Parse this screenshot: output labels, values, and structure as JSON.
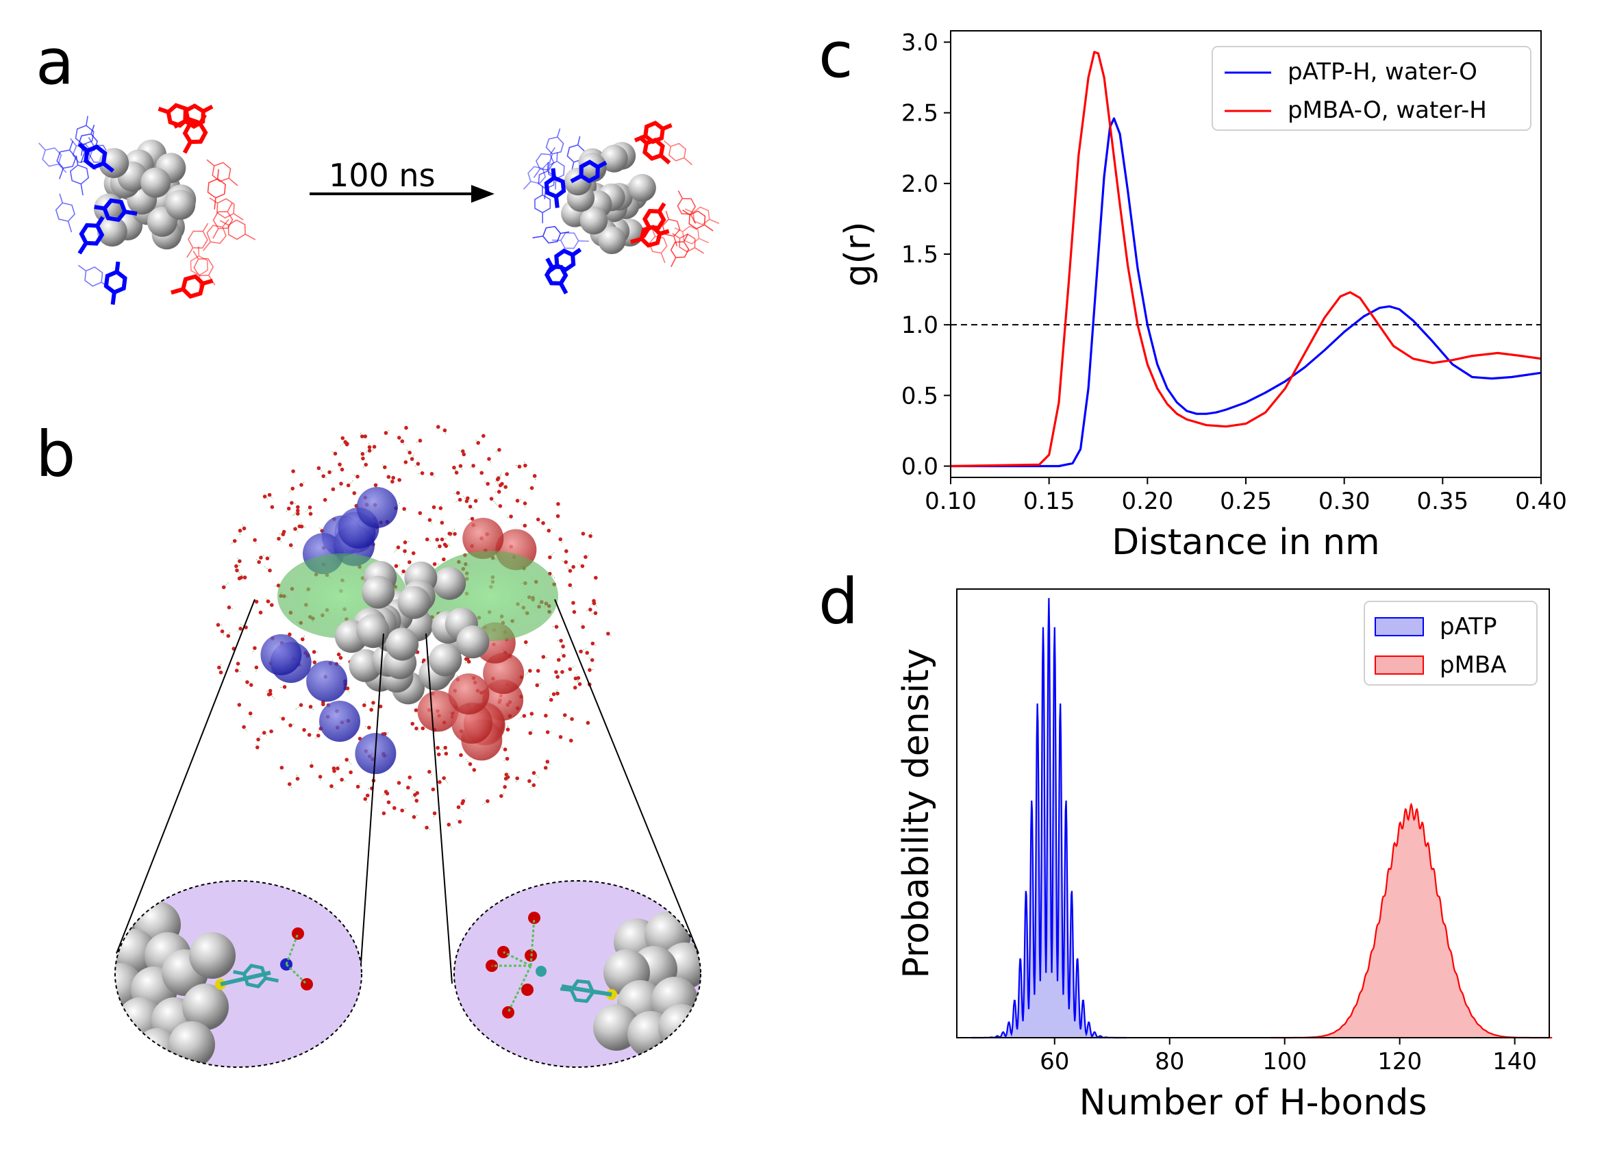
{
  "panels": {
    "a": {
      "letter": "a",
      "arrow_label": "100 ns"
    },
    "b": {
      "letter": "b"
    },
    "c": {
      "letter": "c"
    },
    "d": {
      "letter": "d"
    }
  },
  "colors": {
    "blue": "#0000ff",
    "red": "#ff0000",
    "blue_fill": "#b9b9f5",
    "red_fill": "#f7b3b3",
    "purple": "#dcc8f5",
    "sphere": "#bdbdbd",
    "water_o": "#cc2020",
    "green": "#55c055"
  },
  "chart_data": [
    {
      "panel": "c",
      "type": "line",
      "xlabel": "Distance in nm",
      "ylabel": "g(r)",
      "xlim": [
        0.1,
        0.4
      ],
      "ylim": [
        -0.08,
        3.08
      ],
      "xticks": [
        "0.10",
        "0.15",
        "0.20",
        "0.25",
        "0.30",
        "0.35",
        "0.40"
      ],
      "yticks": [
        "0.0",
        "0.5",
        "1.0",
        "1.5",
        "2.0",
        "2.5",
        "3.0"
      ],
      "legend_position": "top-right",
      "reference_line": {
        "y": 1.0,
        "style": "dashed"
      },
      "series": [
        {
          "name": "pATP-H, water-O",
          "color": "#0000ff",
          "x": [
            0.1,
            0.155,
            0.162,
            0.166,
            0.17,
            0.174,
            0.178,
            0.181,
            0.183,
            0.186,
            0.19,
            0.195,
            0.2,
            0.205,
            0.21,
            0.215,
            0.22,
            0.225,
            0.23,
            0.235,
            0.24,
            0.25,
            0.26,
            0.27,
            0.28,
            0.29,
            0.3,
            0.31,
            0.318,
            0.323,
            0.328,
            0.335,
            0.345,
            0.355,
            0.365,
            0.375,
            0.385,
            0.4
          ],
          "y": [
            0.0,
            0.0,
            0.02,
            0.12,
            0.55,
            1.3,
            2.05,
            2.4,
            2.46,
            2.35,
            1.95,
            1.4,
            1.0,
            0.72,
            0.55,
            0.45,
            0.39,
            0.37,
            0.37,
            0.38,
            0.4,
            0.45,
            0.52,
            0.6,
            0.7,
            0.82,
            0.95,
            1.06,
            1.12,
            1.13,
            1.11,
            1.03,
            0.88,
            0.72,
            0.63,
            0.62,
            0.63,
            0.66
          ]
        },
        {
          "name": "pMBA-O, water-H",
          "color": "#ff0000",
          "x": [
            0.1,
            0.145,
            0.15,
            0.155,
            0.16,
            0.165,
            0.17,
            0.173,
            0.175,
            0.178,
            0.182,
            0.186,
            0.19,
            0.195,
            0.2,
            0.205,
            0.21,
            0.215,
            0.22,
            0.23,
            0.24,
            0.25,
            0.26,
            0.27,
            0.28,
            0.29,
            0.298,
            0.303,
            0.308,
            0.315,
            0.325,
            0.335,
            0.345,
            0.355,
            0.365,
            0.378,
            0.39,
            0.4
          ],
          "y": [
            0.0,
            0.01,
            0.08,
            0.45,
            1.3,
            2.2,
            2.75,
            2.93,
            2.92,
            2.75,
            2.3,
            1.85,
            1.42,
            1.0,
            0.72,
            0.55,
            0.44,
            0.37,
            0.33,
            0.29,
            0.28,
            0.3,
            0.38,
            0.55,
            0.8,
            1.05,
            1.2,
            1.23,
            1.19,
            1.05,
            0.85,
            0.76,
            0.73,
            0.75,
            0.78,
            0.8,
            0.78,
            0.76
          ]
        }
      ]
    },
    {
      "panel": "d",
      "type": "area",
      "xlabel": "Number of H-bonds",
      "ylabel": "Probability density",
      "xlim": [
        43,
        146
      ],
      "ylim": [
        0,
        1.0
      ],
      "xticks": [
        "60",
        "80",
        "100",
        "120",
        "140"
      ],
      "legend_position": "top-right",
      "series": [
        {
          "name": "pATP",
          "color": "#0000ff",
          "fill": "#b9b9f5",
          "mean": 59,
          "sd": 2.7,
          "peak": 0.98,
          "parity_oscillation": 0.85
        },
        {
          "name": "pMBA",
          "color": "#ff0000",
          "fill": "#f7b3b3",
          "mean": 122,
          "sd": 4.9,
          "peak": 0.52,
          "parity_oscillation": 0.06
        }
      ]
    }
  ]
}
